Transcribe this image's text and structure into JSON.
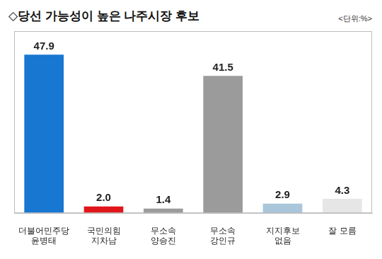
{
  "chart_data": {
    "type": "bar",
    "title": "◇당선 가능성이 높은 나주시장 후보",
    "subtitle": "<단위:%>",
    "categories": [
      "더불어민주당\n윤병태",
      "국민의힘\n지차남",
      "무소속\n양승진",
      "무소속\n강인규",
      "지지후보\n없음",
      "잘 모름"
    ],
    "values": [
      47.9,
      2.0,
      1.4,
      41.5,
      2.9,
      4.3
    ],
    "value_labels": [
      "47.9",
      "2.0",
      "1.4",
      "41.5",
      "2.9",
      "4.3"
    ],
    "colors": [
      "#1777d1",
      "#e0161b",
      "#9b9b9b",
      "#9b9b9b",
      "#a9c6da",
      "#e6e6e6"
    ],
    "ylim": [
      0,
      55
    ],
    "grid": false,
    "data_labels": true,
    "tick_labels": "x"
  }
}
